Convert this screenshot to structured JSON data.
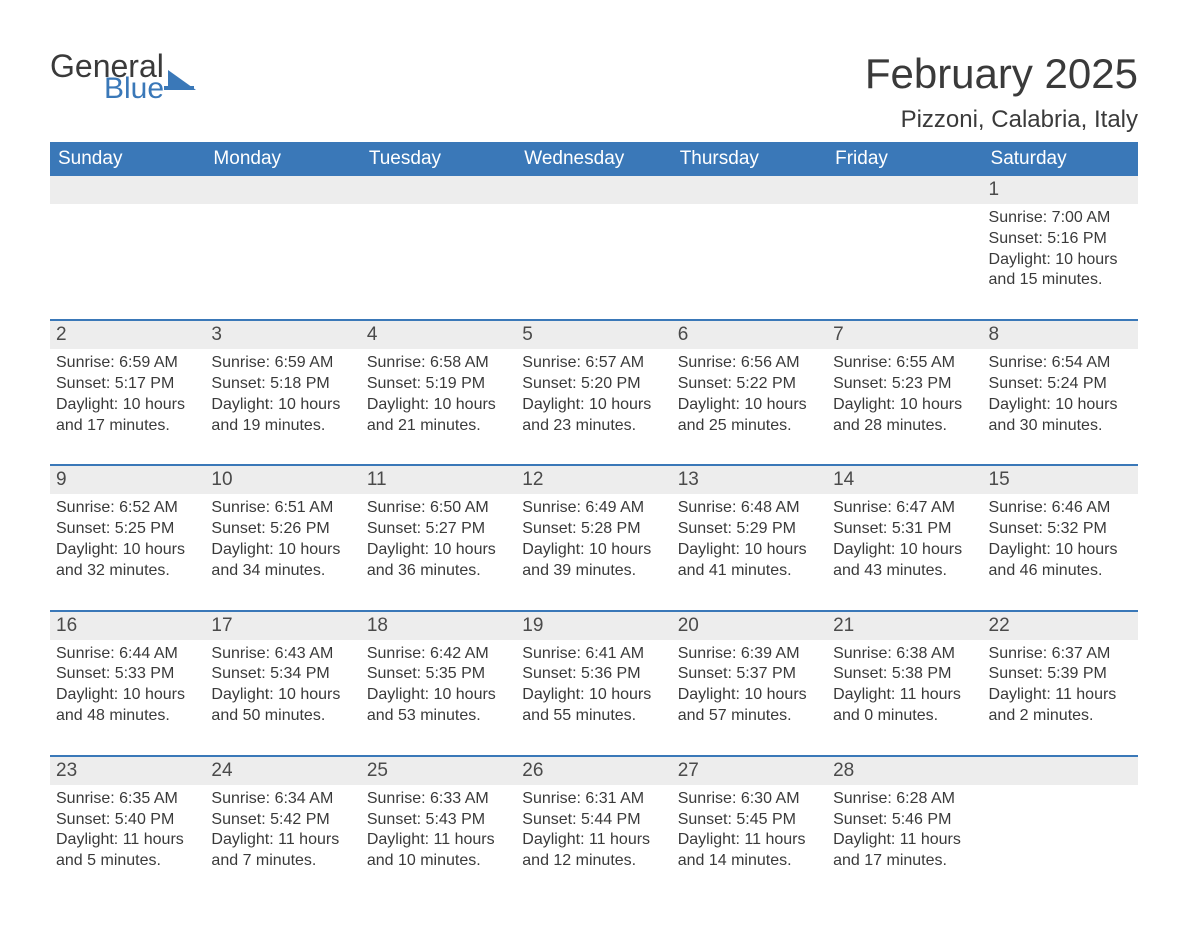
{
  "brand": {
    "word1": "General",
    "word2": "Blue",
    "accent_color": "#3a78b8"
  },
  "title": "February 2025",
  "location": "Pizzoni, Calabria, Italy",
  "day_headers": [
    "Sunday",
    "Monday",
    "Tuesday",
    "Wednesday",
    "Thursday",
    "Friday",
    "Saturday"
  ],
  "colors": {
    "header_bg": "#3a78b8",
    "header_fg": "#ffffff",
    "daynum_bg": "#ededed",
    "text": "#3a3a3a",
    "rule": "#3a78b8",
    "page_bg": "#ffffff"
  },
  "fonts": {
    "title_size_pt": 32,
    "location_size_pt": 18,
    "header_size_pt": 14,
    "cell_size_pt": 12
  },
  "calendar": {
    "type": "table",
    "columns": 7,
    "weeks": [
      [
        null,
        null,
        null,
        null,
        null,
        null,
        {
          "n": "1",
          "sunrise": "7:00 AM",
          "sunset": "5:16 PM",
          "daylight": "10 hours and 15 minutes."
        }
      ],
      [
        {
          "n": "2",
          "sunrise": "6:59 AM",
          "sunset": "5:17 PM",
          "daylight": "10 hours and 17 minutes."
        },
        {
          "n": "3",
          "sunrise": "6:59 AM",
          "sunset": "5:18 PM",
          "daylight": "10 hours and 19 minutes."
        },
        {
          "n": "4",
          "sunrise": "6:58 AM",
          "sunset": "5:19 PM",
          "daylight": "10 hours and 21 minutes."
        },
        {
          "n": "5",
          "sunrise": "6:57 AM",
          "sunset": "5:20 PM",
          "daylight": "10 hours and 23 minutes."
        },
        {
          "n": "6",
          "sunrise": "6:56 AM",
          "sunset": "5:22 PM",
          "daylight": "10 hours and 25 minutes."
        },
        {
          "n": "7",
          "sunrise": "6:55 AM",
          "sunset": "5:23 PM",
          "daylight": "10 hours and 28 minutes."
        },
        {
          "n": "8",
          "sunrise": "6:54 AM",
          "sunset": "5:24 PM",
          "daylight": "10 hours and 30 minutes."
        }
      ],
      [
        {
          "n": "9",
          "sunrise": "6:52 AM",
          "sunset": "5:25 PM",
          "daylight": "10 hours and 32 minutes."
        },
        {
          "n": "10",
          "sunrise": "6:51 AM",
          "sunset": "5:26 PM",
          "daylight": "10 hours and 34 minutes."
        },
        {
          "n": "11",
          "sunrise": "6:50 AM",
          "sunset": "5:27 PM",
          "daylight": "10 hours and 36 minutes."
        },
        {
          "n": "12",
          "sunrise": "6:49 AM",
          "sunset": "5:28 PM",
          "daylight": "10 hours and 39 minutes."
        },
        {
          "n": "13",
          "sunrise": "6:48 AM",
          "sunset": "5:29 PM",
          "daylight": "10 hours and 41 minutes."
        },
        {
          "n": "14",
          "sunrise": "6:47 AM",
          "sunset": "5:31 PM",
          "daylight": "10 hours and 43 minutes."
        },
        {
          "n": "15",
          "sunrise": "6:46 AM",
          "sunset": "5:32 PM",
          "daylight": "10 hours and 46 minutes."
        }
      ],
      [
        {
          "n": "16",
          "sunrise": "6:44 AM",
          "sunset": "5:33 PM",
          "daylight": "10 hours and 48 minutes."
        },
        {
          "n": "17",
          "sunrise": "6:43 AM",
          "sunset": "5:34 PM",
          "daylight": "10 hours and 50 minutes."
        },
        {
          "n": "18",
          "sunrise": "6:42 AM",
          "sunset": "5:35 PM",
          "daylight": "10 hours and 53 minutes."
        },
        {
          "n": "19",
          "sunrise": "6:41 AM",
          "sunset": "5:36 PM",
          "daylight": "10 hours and 55 minutes."
        },
        {
          "n": "20",
          "sunrise": "6:39 AM",
          "sunset": "5:37 PM",
          "daylight": "10 hours and 57 minutes."
        },
        {
          "n": "21",
          "sunrise": "6:38 AM",
          "sunset": "5:38 PM",
          "daylight": "11 hours and 0 minutes."
        },
        {
          "n": "22",
          "sunrise": "6:37 AM",
          "sunset": "5:39 PM",
          "daylight": "11 hours and 2 minutes."
        }
      ],
      [
        {
          "n": "23",
          "sunrise": "6:35 AM",
          "sunset": "5:40 PM",
          "daylight": "11 hours and 5 minutes."
        },
        {
          "n": "24",
          "sunrise": "6:34 AM",
          "sunset": "5:42 PM",
          "daylight": "11 hours and 7 minutes."
        },
        {
          "n": "25",
          "sunrise": "6:33 AM",
          "sunset": "5:43 PM",
          "daylight": "11 hours and 10 minutes."
        },
        {
          "n": "26",
          "sunrise": "6:31 AM",
          "sunset": "5:44 PM",
          "daylight": "11 hours and 12 minutes."
        },
        {
          "n": "27",
          "sunrise": "6:30 AM",
          "sunset": "5:45 PM",
          "daylight": "11 hours and 14 minutes."
        },
        {
          "n": "28",
          "sunrise": "6:28 AM",
          "sunset": "5:46 PM",
          "daylight": "11 hours and 17 minutes."
        },
        null
      ]
    ]
  },
  "labels": {
    "sunrise_prefix": "Sunrise: ",
    "sunset_prefix": "Sunset: ",
    "daylight_prefix": "Daylight: "
  }
}
